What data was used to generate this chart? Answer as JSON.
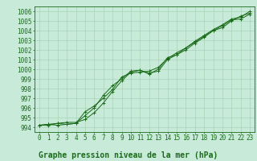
{
  "title": "Graphe pression niveau de la mer (hPa)",
  "x_labels": [
    "0",
    "1",
    "2",
    "3",
    "4",
    "5",
    "6",
    "7",
    "8",
    "9",
    "10",
    "11",
    "12",
    "13",
    "14",
    "15",
    "16",
    "17",
    "18",
    "19",
    "20",
    "21",
    "22",
    "23"
  ],
  "ylim": [
    993.5,
    1006.5
  ],
  "xlim": [
    -0.5,
    23.5
  ],
  "yticks": [
    994,
    995,
    996,
    997,
    998,
    999,
    1000,
    1001,
    1002,
    1003,
    1004,
    1005,
    1006
  ],
  "line_color": "#1a6b1a",
  "bg_color": "#c8ead8",
  "grid_color": "#a8d4b8",
  "series": [
    [
      994.2,
      994.3,
      994.2,
      994.3,
      994.4,
      995.2,
      996.0,
      997.3,
      998.3,
      999.0,
      999.8,
      999.9,
      999.6,
      999.8,
      1001.0,
      1001.5,
      1002.2,
      1002.8,
      1003.4,
      1004.0,
      1004.5,
      1005.1,
      1005.2,
      1005.7
    ],
    [
      994.2,
      994.2,
      994.4,
      994.5,
      994.5,
      994.8,
      995.5,
      996.5,
      997.7,
      998.8,
      999.7,
      999.9,
      999.5,
      1000.0,
      1001.2,
      1001.5,
      1002.0,
      1002.7,
      1003.3,
      1004.0,
      1004.3,
      1005.0,
      1005.5,
      1005.8
    ],
    [
      994.2,
      994.3,
      994.4,
      994.3,
      994.4,
      995.6,
      996.2,
      997.0,
      997.9,
      999.2,
      999.6,
      999.7,
      999.8,
      1000.2,
      1001.1,
      1001.7,
      1002.2,
      1002.9,
      1003.5,
      1004.1,
      1004.6,
      1005.2,
      1005.4,
      1006.0
    ]
  ],
  "title_fontsize": 7,
  "tick_fontsize": 5.5,
  "marker": "+"
}
